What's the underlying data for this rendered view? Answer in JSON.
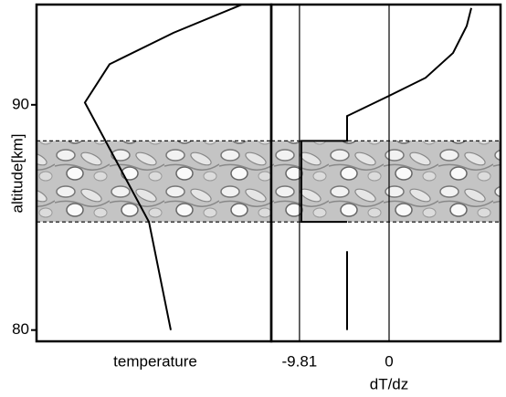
{
  "chart_data": [
    {
      "type": "line",
      "xlabel": "temperature",
      "ylabel": "altitude[km]",
      "xlim": [
        0,
        100
      ],
      "ylim": [
        79.5,
        94.45
      ],
      "yticks": [
        80,
        90
      ],
      "band": [
        84.8,
        88.4
      ],
      "series": [
        {
          "color": "#000000",
          "x": [
            57.2,
            47.9,
            20.6,
            31.1,
            58.4,
            87.5
          ],
          "y": [
            80,
            84.8,
            90.1,
            91.8,
            93.2,
            94.45
          ]
        }
      ]
    },
    {
      "type": "line",
      "xlabel": "dT/dz",
      "xlim": [
        -12.9,
        12.2
      ],
      "xticks": [
        -9.81,
        0
      ],
      "grid": true,
      "ylim": [
        79.5,
        94.45
      ],
      "band": [
        84.8,
        88.4
      ],
      "series": [
        {
          "color": "#000000",
          "x": [
            -4.6,
            -4.6,
            null,
            -4.6,
            -9.6,
            -9.6,
            -4.6,
            -4.6,
            0,
            4,
            7,
            8.5,
            9.0
          ],
          "y": [
            80,
            83.5,
            null,
            84.8,
            84.8,
            88.4,
            88.4,
            89.5,
            90.4,
            91.2,
            92.3,
            93.5,
            94.3
          ]
        }
      ]
    }
  ]
}
